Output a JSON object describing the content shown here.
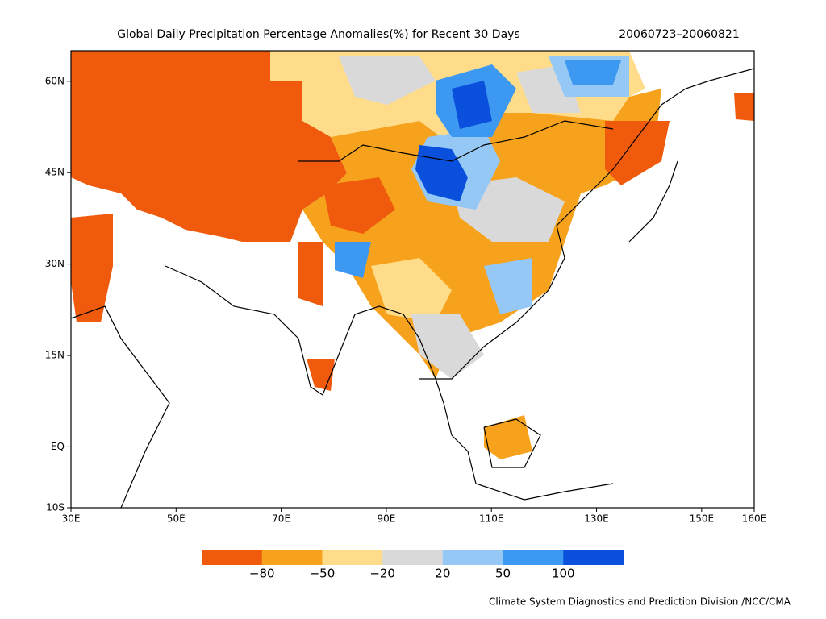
{
  "title": "Global Daily Precipitation Percentage Anomalies(%) for Recent 30 Days",
  "period": "20060723–20060821",
  "lonlim": [
    30,
    160
  ],
  "latlim": [
    -10,
    65
  ],
  "lonticks": [
    {
      "value": 30,
      "label": "30E"
    },
    {
      "value": 50,
      "label": "50E"
    },
    {
      "value": 70,
      "label": "70E"
    },
    {
      "value": 90,
      "label": "90E"
    },
    {
      "value": 110,
      "label": "110E"
    },
    {
      "value": 130,
      "label": "130E"
    },
    {
      "value": 150,
      "label": "150E"
    },
    {
      "value": 160,
      "label": "160E"
    }
  ],
  "latticks": [
    {
      "value": -10,
      "label": "10S"
    },
    {
      "value": 0,
      "label": "EQ"
    },
    {
      "value": 15,
      "label": "15N"
    },
    {
      "value": 30,
      "label": "30N"
    },
    {
      "value": 45,
      "label": "45N"
    },
    {
      "value": 60,
      "label": "60N"
    }
  ],
  "legend": {
    "colors": [
      "#ef5a0c",
      "#f7a21c",
      "#fedc8a",
      "#d9d9d9",
      "#96c8f5",
      "#3d98f2",
      "#0a50dc"
    ],
    "boundaries": [
      {
        "value": -80,
        "label": "−80"
      },
      {
        "value": -50,
        "label": "−50"
      },
      {
        "value": -20,
        "label": "−20"
      },
      20,
      50,
      100
    ]
  },
  "footer": "Climate System Diagnostics and Prediction Division /NCC/CMA"
}
